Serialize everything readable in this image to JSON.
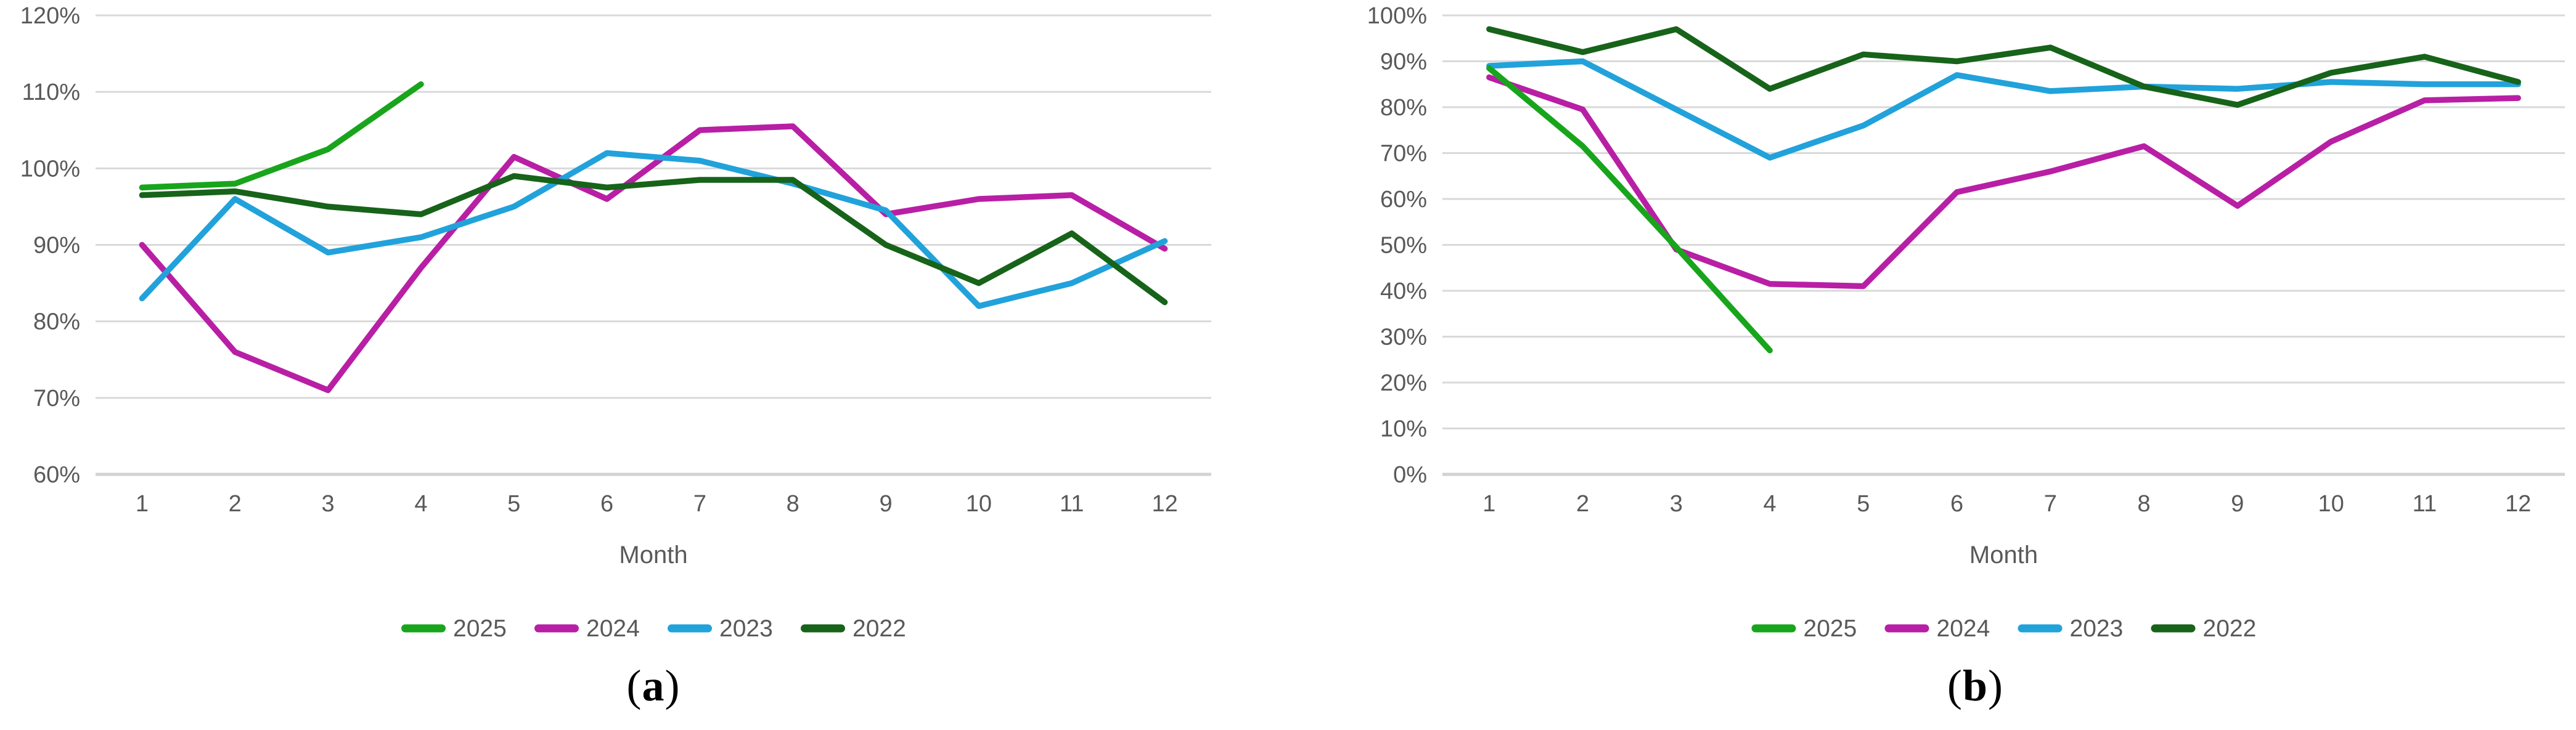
{
  "figure": {
    "background": "#ffffff",
    "captions": [
      {
        "open": "(",
        "letter": "a",
        "close": ")"
      },
      {
        "open": "(",
        "letter": "b",
        "close": ")"
      }
    ]
  },
  "colors": {
    "grid": "#d9d9d9",
    "axis_line": "#d2d2d2",
    "tick_text": "#595959",
    "series": {
      "2025": "#18a51c",
      "2024": "#b81fa5",
      "2023": "#21a2db",
      "2022": "#17631a"
    }
  },
  "chart_data": [
    {
      "id": "a",
      "type": "line",
      "caption": "(a)",
      "xlabel": "Month",
      "x_categories": [
        "1",
        "2",
        "3",
        "4",
        "5",
        "6",
        "7",
        "8",
        "9",
        "10",
        "11",
        "12"
      ],
      "yticks": [
        "120%",
        "110%",
        "100%",
        "90%",
        "80%",
        "70%",
        "60%"
      ],
      "ylim": [
        60,
        120
      ],
      "ytick_step": 10,
      "grid": true,
      "legend_position": "bottom",
      "legend": [
        "2025",
        "2024",
        "2023",
        "2022"
      ],
      "series": [
        {
          "name": "2025",
          "color_key": "2025",
          "values": [
            97.5,
            98,
            102.5,
            111,
            null,
            null,
            null,
            null,
            null,
            null,
            null,
            null
          ]
        },
        {
          "name": "2024",
          "color_key": "2024",
          "values": [
            90,
            76,
            71,
            87,
            101.5,
            96,
            105,
            105.5,
            94,
            96,
            96.5,
            89.5
          ]
        },
        {
          "name": "2023",
          "color_key": "2023",
          "values": [
            83,
            96,
            89,
            91,
            95,
            102,
            101,
            98,
            94.5,
            82,
            85,
            90.5
          ]
        },
        {
          "name": "2022",
          "color_key": "2022",
          "values": [
            96.5,
            97,
            95,
            94,
            99,
            97.5,
            98.5,
            98.5,
            90,
            85,
            91.5,
            82.5
          ]
        }
      ]
    },
    {
      "id": "b",
      "type": "line",
      "caption": "(b)",
      "xlabel": "Month",
      "x_categories": [
        "1",
        "2",
        "3",
        "4",
        "5",
        "6",
        "7",
        "8",
        "9",
        "10",
        "11",
        "12"
      ],
      "yticks": [
        "100%",
        "90%",
        "80%",
        "70%",
        "60%",
        "50%",
        "40%",
        "30%",
        "20%",
        "10%",
        "0%"
      ],
      "ylim": [
        0,
        100
      ],
      "ytick_step": 10,
      "grid": true,
      "legend_position": "bottom",
      "legend": [
        "2025",
        "2024",
        "2023",
        "2022"
      ],
      "series": [
        {
          "name": "2025",
          "color_key": "2025",
          "values": [
            88.5,
            71.5,
            49.5,
            27,
            null,
            null,
            null,
            null,
            null,
            null,
            null,
            null
          ]
        },
        {
          "name": "2024",
          "color_key": "2024",
          "values": [
            86.5,
            79.5,
            49,
            41.5,
            41,
            61.5,
            66,
            71.5,
            58.5,
            72.5,
            81.5,
            82
          ]
        },
        {
          "name": "2023",
          "color_key": "2023",
          "values": [
            89,
            90,
            79.5,
            69,
            76,
            87,
            83.5,
            84.5,
            84,
            85.5,
            85,
            85
          ]
        },
        {
          "name": "2022",
          "color_key": "2022",
          "values": [
            97,
            92,
            97,
            84,
            91.5,
            90,
            93,
            84.5,
            80.5,
            87.5,
            91,
            85.5
          ]
        }
      ]
    }
  ]
}
